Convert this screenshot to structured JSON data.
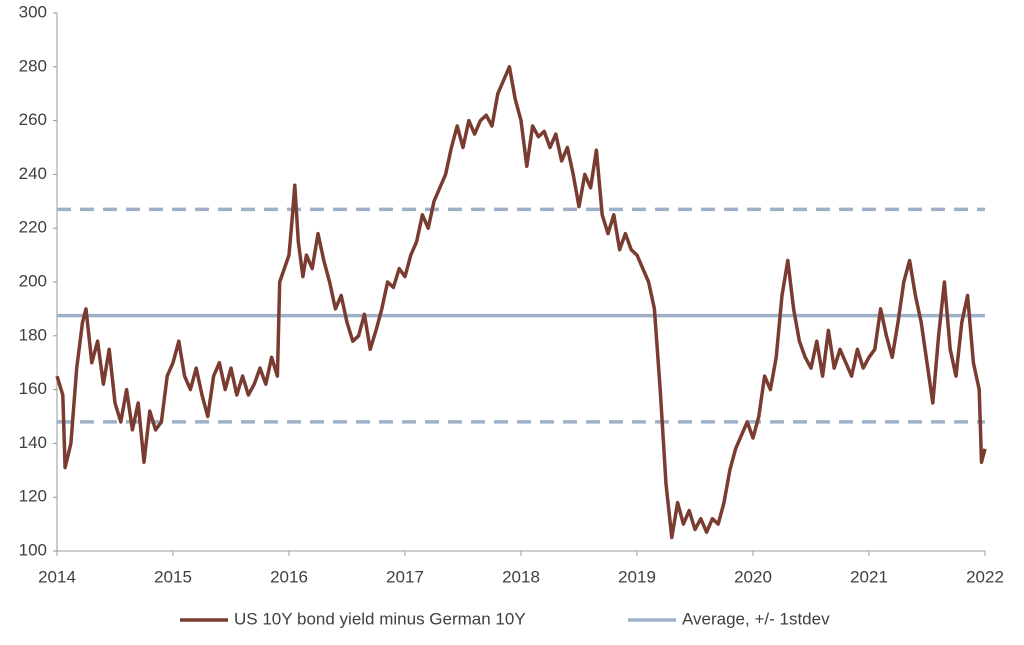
{
  "chart_data": {
    "type": "line",
    "x": [
      2014.0,
      2014.05,
      2014.07,
      2014.12,
      2014.17,
      2014.22,
      2014.25,
      2014.3,
      2014.35,
      2014.4,
      2014.45,
      2014.5,
      2014.55,
      2014.6,
      2014.65,
      2014.7,
      2014.75,
      2014.8,
      2014.85,
      2014.9,
      2014.95,
      2015.0,
      2015.05,
      2015.1,
      2015.15,
      2015.2,
      2015.25,
      2015.3,
      2015.35,
      2015.4,
      2015.45,
      2015.5,
      2015.55,
      2015.6,
      2015.65,
      2015.7,
      2015.75,
      2015.8,
      2015.85,
      2015.9,
      2015.92,
      2016.0,
      2016.03,
      2016.05,
      2016.08,
      2016.12,
      2016.15,
      2016.2,
      2016.25,
      2016.3,
      2016.35,
      2016.4,
      2016.45,
      2016.5,
      2016.55,
      2016.6,
      2016.65,
      2016.7,
      2016.75,
      2016.8,
      2016.85,
      2016.9,
      2016.95,
      2017.0,
      2017.05,
      2017.1,
      2017.15,
      2017.2,
      2017.25,
      2017.3,
      2017.35,
      2017.4,
      2017.45,
      2017.5,
      2017.55,
      2017.6,
      2017.65,
      2017.7,
      2017.75,
      2017.8,
      2017.85,
      2017.9,
      2017.95,
      2018.0,
      2018.05,
      2018.1,
      2018.15,
      2018.2,
      2018.25,
      2018.3,
      2018.35,
      2018.4,
      2018.45,
      2018.5,
      2018.55,
      2018.6,
      2018.65,
      2018.7,
      2018.75,
      2018.8,
      2018.85,
      2018.9,
      2018.95,
      2019.0,
      2019.05,
      2019.1,
      2019.15,
      2019.2,
      2019.25,
      2019.3,
      2019.35,
      2019.4,
      2019.45,
      2019.5,
      2019.55,
      2019.6,
      2019.65,
      2019.7,
      2019.75,
      2019.8,
      2019.85,
      2019.9,
      2019.95,
      2020.0,
      2020.05,
      2020.1,
      2020.15,
      2020.2,
      2020.25,
      2020.3,
      2020.35,
      2020.4,
      2020.45,
      2020.5,
      2020.55,
      2020.6,
      2020.65,
      2020.7,
      2020.75,
      2020.8,
      2020.85,
      2020.9,
      2020.95,
      2021.0,
      2021.05,
      2021.1,
      2021.15,
      2021.2,
      2021.25,
      2021.3,
      2021.35,
      2021.4,
      2021.45,
      2021.5,
      2021.55,
      2021.6,
      2021.65,
      2021.7,
      2021.75,
      2021.8,
      2021.85,
      2021.9,
      2021.95,
      2021.97,
      2022.0
    ],
    "series": [
      {
        "name": "US 10Y bond yield minus German 10Y",
        "color": "#7a3b31",
        "values": [
          165,
          158,
          131,
          140,
          168,
          185,
          190,
          170,
          178,
          162,
          175,
          155,
          148,
          160,
          145,
          155,
          133,
          152,
          145,
          148,
          165,
          170,
          178,
          165,
          160,
          168,
          158,
          150,
          165,
          170,
          160,
          168,
          158,
          165,
          158,
          162,
          168,
          162,
          172,
          165,
          200,
          210,
          225,
          236,
          215,
          202,
          210,
          205,
          218,
          208,
          200,
          190,
          195,
          185,
          178,
          180,
          188,
          175,
          182,
          190,
          200,
          198,
          205,
          202,
          210,
          215,
          225,
          220,
          230,
          235,
          240,
          250,
          258,
          250,
          260,
          255,
          260,
          262,
          258,
          270,
          275,
          280,
          268,
          260,
          243,
          258,
          254,
          256,
          250,
          255,
          245,
          250,
          240,
          228,
          240,
          235,
          249,
          225,
          218,
          225,
          212,
          218,
          212,
          210,
          205,
          200,
          190,
          160,
          125,
          105,
          118,
          110,
          115,
          108,
          112,
          107,
          112,
          110,
          118,
          130,
          138,
          143,
          148,
          142,
          150,
          165,
          160,
          172,
          195,
          208,
          190,
          178,
          172,
          168,
          178,
          165,
          182,
          168,
          175,
          170,
          165,
          175,
          168,
          172,
          175,
          190,
          180,
          172,
          185,
          200,
          208,
          195,
          185,
          170,
          155,
          180,
          200,
          175,
          165,
          185,
          195,
          170,
          160,
          133,
          138
        ]
      }
    ],
    "reference": {
      "name": "Average, +/- 1stdev",
      "color": "#9fb0c9",
      "values": [
        148,
        187.5,
        227
      ],
      "dashed": [
        true,
        false,
        true
      ]
    },
    "xlim": [
      2014,
      2022
    ],
    "xticks": [
      2014,
      2015,
      2016,
      2017,
      2018,
      2019,
      2020,
      2021,
      2022
    ],
    "ylim": [
      100,
      300
    ],
    "yticks": [
      100,
      120,
      140,
      160,
      180,
      200,
      220,
      240,
      260,
      280,
      300
    ],
    "legend": "bottom"
  }
}
